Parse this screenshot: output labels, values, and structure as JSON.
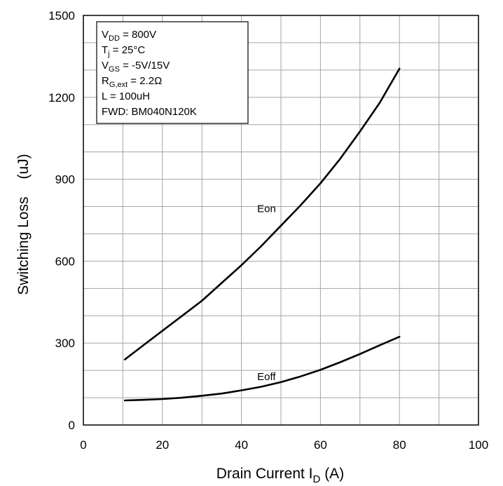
{
  "chart_data": {
    "type": "line",
    "xlabel": {
      "main": "Drain Current   I",
      "sub": "D",
      "unit": " (A)"
    },
    "ylabel": {
      "main": "Switching Loss",
      "unit": "(uJ)"
    },
    "xlim": [
      0,
      100
    ],
    "ylim": [
      0,
      1500
    ],
    "x_ticks": [
      "0",
      "20",
      "40",
      "60",
      "80",
      "100"
    ],
    "y_ticks": [
      "0",
      "300",
      "600",
      "900",
      "1200",
      "1500"
    ],
    "grid": true,
    "series": [
      {
        "name": "Eon",
        "x": [
          10.5,
          15,
          20,
          25,
          30,
          35,
          40,
          45,
          50,
          55,
          60,
          65,
          70,
          75,
          80
        ],
        "y": [
          240,
          290,
          345,
          400,
          455,
          520,
          585,
          655,
          730,
          805,
          885,
          975,
          1075,
          1180,
          1305
        ]
      },
      {
        "name": "Eoff",
        "x": [
          10.5,
          15,
          20,
          25,
          30,
          35,
          40,
          45,
          50,
          55,
          60,
          65,
          70,
          75,
          80
        ],
        "y": [
          90,
          92,
          95,
          100,
          107,
          115,
          127,
          140,
          157,
          178,
          202,
          230,
          260,
          292,
          323
        ]
      }
    ],
    "conditions": [
      {
        "pre": "V",
        "sub": "DD",
        "post": " = 800V"
      },
      {
        "pre": "T",
        "sub": "j",
        "post": " = 25°C"
      },
      {
        "pre": "V",
        "sub": "GS",
        "post": " = -5V/15V"
      },
      {
        "pre": "R",
        "sub": "G,ext",
        "post": " = 2.2Ω"
      },
      {
        "pre": "L = 100uH",
        "sub": "",
        "post": ""
      },
      {
        "pre": "FWD: BM040N120K",
        "sub": "",
        "post": ""
      }
    ]
  }
}
